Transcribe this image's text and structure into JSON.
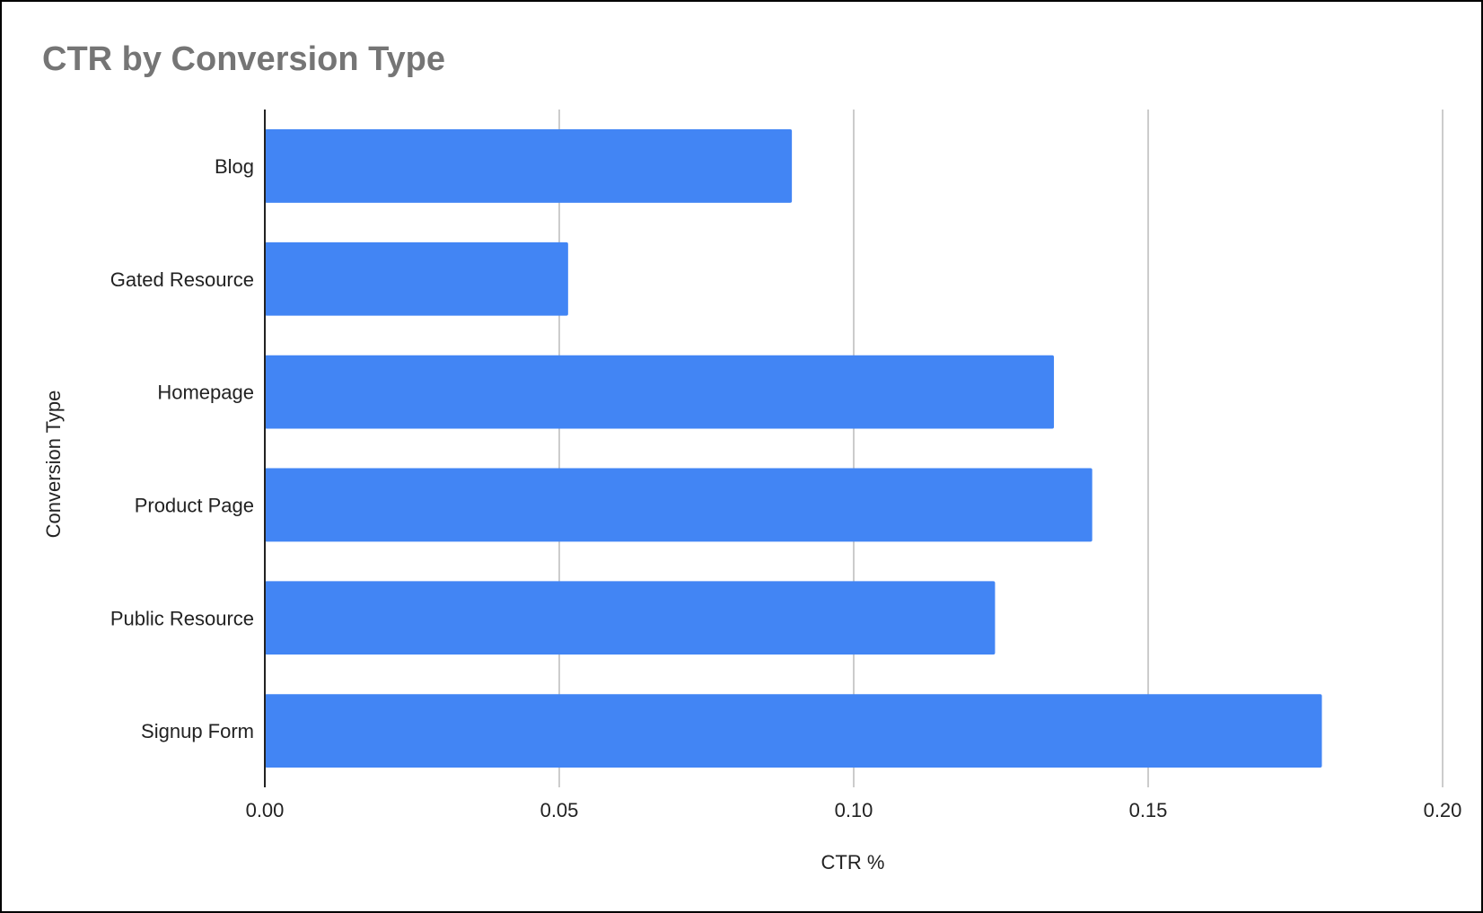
{
  "chart_data": {
    "type": "bar",
    "orientation": "horizontal",
    "title": "CTR by Conversion Type",
    "xlabel": "CTR %",
    "ylabel": "Conversion Type",
    "categories": [
      "Blog",
      "Gated Resource",
      "Homepage",
      "Product Page",
      "Public Resource",
      "Signup Form"
    ],
    "values": [
      0.0895,
      0.0515,
      0.134,
      0.1405,
      0.124,
      0.1795
    ],
    "xlim": [
      0,
      0.2
    ],
    "ticks": [
      0,
      0.05,
      0.1,
      0.15,
      0.2
    ],
    "tick_labels": [
      "0.00",
      "0.05",
      "0.10",
      "0.15",
      "0.20"
    ],
    "grid": true,
    "bar_color": "#4285f4"
  }
}
